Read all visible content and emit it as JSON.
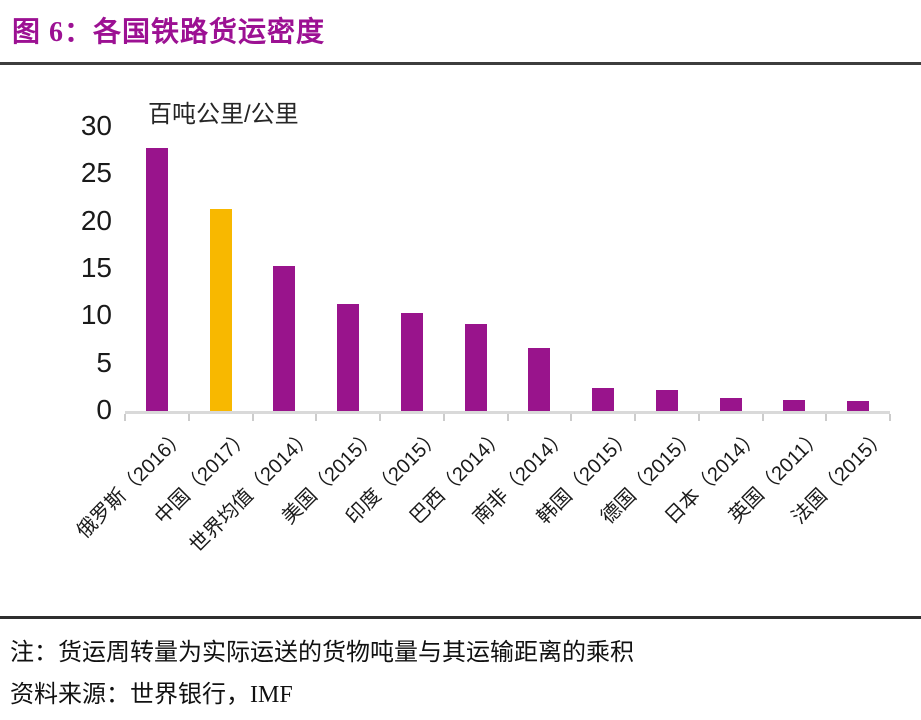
{
  "header": {
    "title": "图 6：各国铁路货运密度"
  },
  "chart_data": {
    "type": "bar",
    "title": "各国铁路货运密度",
    "unit_label": "百吨公里/公里",
    "categories": [
      "俄罗斯（2016）",
      "中国（2017）",
      "世界均值（2014）",
      "美国（2015）",
      "印度（2015）",
      "巴西（2014）",
      "南非（2014）",
      "韩国（2015）",
      "德国（2015）",
      "日本（2014）",
      "英国（2011）",
      "法国（2015）"
    ],
    "values": [
      27.8,
      21.3,
      15.3,
      11.3,
      10.4,
      9.2,
      6.7,
      2.4,
      2.2,
      1.4,
      1.2,
      1.1
    ],
    "highlight_index": 1,
    "colors": {
      "bar_default": "#99148C",
      "bar_highlight": "#F8B800",
      "title_accent": "#9C1193",
      "axis": "#d9d9d9"
    },
    "ylim": [
      0,
      30
    ],
    "yticks": [
      0,
      5,
      10,
      15,
      20,
      25,
      30
    ],
    "grid": false,
    "legend": "none",
    "xlabel": "",
    "ylabel": "百吨公里/公里"
  },
  "footer": {
    "note": "注：货运周转量为实际运送的货物吨量与其运输距离的乘积",
    "source": "资料来源：世界银行，IMF"
  }
}
